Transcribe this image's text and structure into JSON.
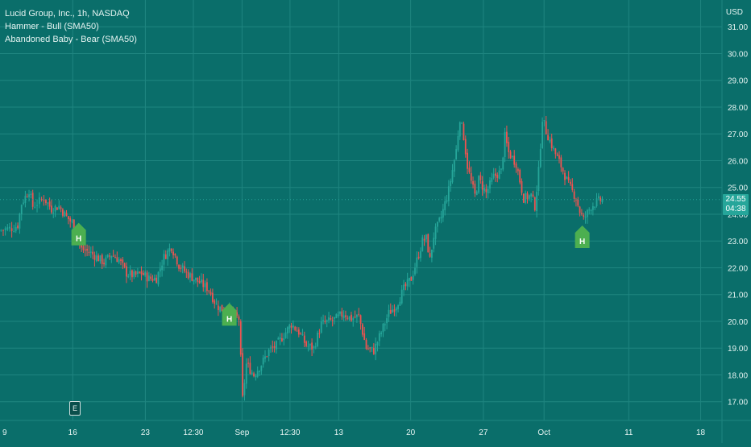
{
  "header": {
    "symbol_line": "Lucid Group, Inc., 1h, NASDAQ",
    "indicators": [
      "Hammer - Bull (SMA50)",
      "Abandoned Baby - Bear (SMA50)"
    ],
    "currency": "USD"
  },
  "price_tag": {
    "price": "24.55",
    "countdown": "04:38",
    "color": "#26a69a"
  },
  "event_badge": "E",
  "colors": {
    "background": "#0a6e6a",
    "grid": "#1f8580",
    "text": "#e6f4f2",
    "up": "#26a69a",
    "down": "#ef5350",
    "marker": "#4caf50",
    "last_price_line": "#26a69a"
  },
  "chart_data": {
    "type": "candlestick",
    "title": "Lucid Group, Inc., 1h, NASDAQ",
    "ylim": [
      16.3,
      32.0
    ],
    "yticks": [
      17.0,
      18.0,
      19.0,
      20.0,
      21.0,
      22.0,
      23.0,
      24.0,
      25.0,
      26.0,
      27.0,
      28.0,
      29.0,
      30.0,
      31.0
    ],
    "xticks": [
      {
        "label": "9",
        "pos": 0.0
      },
      {
        "label": "16",
        "pos": 0.097
      },
      {
        "label": "23",
        "pos": 0.194
      },
      {
        "label": "12:30",
        "pos": 0.258
      },
      {
        "label": "Sep",
        "pos": 0.323
      },
      {
        "label": "12:30",
        "pos": 0.387
      },
      {
        "label": "13",
        "pos": 0.452
      },
      {
        "label": "20",
        "pos": 0.548
      },
      {
        "label": "27",
        "pos": 0.645
      },
      {
        "label": "Oct",
        "pos": 0.726
      },
      {
        "label": "11",
        "pos": 0.839
      },
      {
        "label": "18",
        "pos": 0.935
      }
    ],
    "grid": true,
    "last_price": 24.55,
    "path": [
      [
        0.0,
        23.4
      ],
      [
        0.02,
        23.5
      ],
      [
        0.025,
        23.6
      ],
      [
        0.03,
        24.4
      ],
      [
        0.04,
        24.9
      ],
      [
        0.045,
        24.3
      ],
      [
        0.06,
        24.6
      ],
      [
        0.07,
        24.2
      ],
      [
        0.08,
        24.3
      ],
      [
        0.09,
        23.9
      ],
      [
        0.1,
        23.6
      ],
      [
        0.11,
        22.7
      ],
      [
        0.12,
        22.6
      ],
      [
        0.13,
        22.4
      ],
      [
        0.14,
        22.2
      ],
      [
        0.15,
        22.5
      ],
      [
        0.16,
        22.3
      ],
      [
        0.17,
        21.8
      ],
      [
        0.18,
        21.7
      ],
      [
        0.19,
        21.8
      ],
      [
        0.2,
        21.6
      ],
      [
        0.21,
        21.6
      ],
      [
        0.22,
        22.4
      ],
      [
        0.23,
        22.8
      ],
      [
        0.24,
        22.1
      ],
      [
        0.25,
        21.8
      ],
      [
        0.26,
        21.6
      ],
      [
        0.27,
        21.4
      ],
      [
        0.28,
        21.2
      ],
      [
        0.29,
        20.6
      ],
      [
        0.3,
        20.4
      ],
      [
        0.31,
        20.3
      ],
      [
        0.32,
        20.1
      ],
      [
        0.325,
        17.1
      ],
      [
        0.33,
        18.4
      ],
      [
        0.34,
        18.0
      ],
      [
        0.35,
        18.4
      ],
      [
        0.36,
        18.9
      ],
      [
        0.37,
        19.1
      ],
      [
        0.38,
        19.5
      ],
      [
        0.39,
        19.9
      ],
      [
        0.4,
        19.6
      ],
      [
        0.41,
        19.1
      ],
      [
        0.42,
        19.0
      ],
      [
        0.43,
        19.9
      ],
      [
        0.44,
        20.0
      ],
      [
        0.45,
        20.1
      ],
      [
        0.46,
        20.3
      ],
      [
        0.47,
        20.1
      ],
      [
        0.48,
        20.2
      ],
      [
        0.49,
        19.0
      ],
      [
        0.5,
        18.9
      ],
      [
        0.51,
        19.6
      ],
      [
        0.52,
        20.3
      ],
      [
        0.53,
        20.6
      ],
      [
        0.54,
        21.2
      ],
      [
        0.55,
        21.6
      ],
      [
        0.56,
        22.5
      ],
      [
        0.565,
        23.0
      ],
      [
        0.57,
        23.1
      ],
      [
        0.575,
        22.3
      ],
      [
        0.58,
        23.2
      ],
      [
        0.59,
        23.9
      ],
      [
        0.6,
        24.9
      ],
      [
        0.61,
        26.4
      ],
      [
        0.615,
        27.6
      ],
      [
        0.62,
        26.9
      ],
      [
        0.625,
        25.8
      ],
      [
        0.63,
        25.2
      ],
      [
        0.635,
        24.7
      ],
      [
        0.64,
        25.3
      ],
      [
        0.65,
        24.8
      ],
      [
        0.66,
        25.4
      ],
      [
        0.67,
        25.6
      ],
      [
        0.675,
        26.9
      ],
      [
        0.68,
        26.3
      ],
      [
        0.69,
        25.9
      ],
      [
        0.7,
        24.6
      ],
      [
        0.71,
        24.7
      ],
      [
        0.715,
        24.3
      ],
      [
        0.72,
        25.6
      ],
      [
        0.725,
        27.6
      ],
      [
        0.73,
        27.1
      ],
      [
        0.74,
        26.4
      ],
      [
        0.75,
        25.8
      ],
      [
        0.76,
        25.1
      ],
      [
        0.77,
        24.6
      ],
      [
        0.775,
        24.1
      ],
      [
        0.78,
        23.8
      ],
      [
        0.79,
        24.3
      ],
      [
        0.8,
        24.5
      ],
      [
        0.805,
        24.55
      ]
    ],
    "markers": [
      {
        "label": "H",
        "x": 0.105,
        "price": 23.8
      },
      {
        "label": "H",
        "x": 0.306,
        "price": 20.8
      },
      {
        "label": "H",
        "x": 0.777,
        "price": 23.7
      }
    ]
  }
}
